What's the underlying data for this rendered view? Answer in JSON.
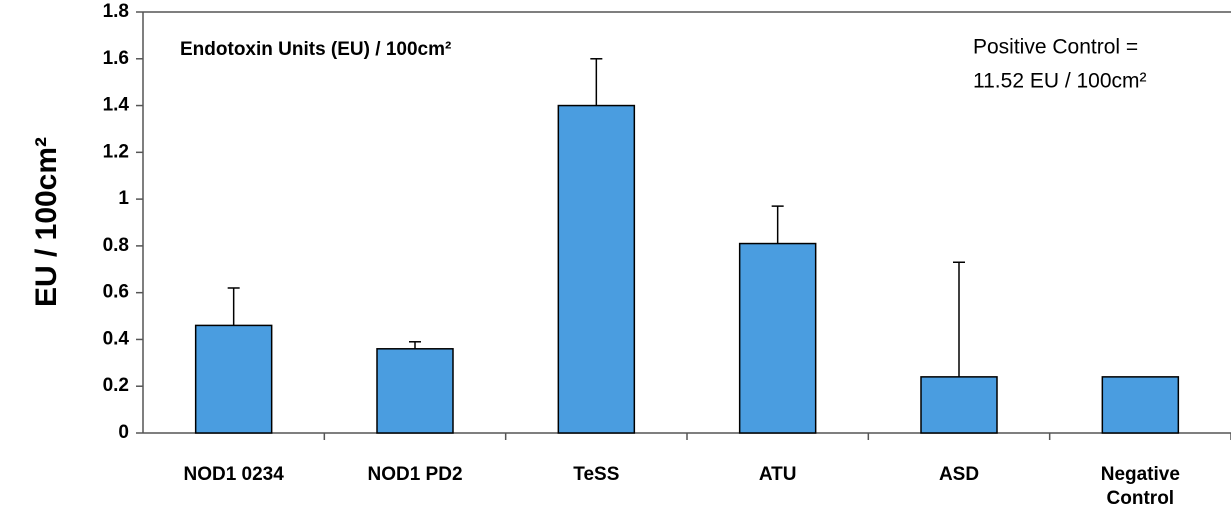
{
  "chart_data": {
    "type": "bar",
    "title": "Endotoxin Units (EU) / 100cm²",
    "annotation": [
      "Positive Control =",
      "11.52 EU / 100cm²"
    ],
    "y_label": "EU / 100cm²",
    "categories": [
      "NOD1 0234",
      "NOD1 PD2",
      "TeSS",
      "ATU",
      "ASD",
      "Negative Control"
    ],
    "values": [
      0.46,
      0.36,
      1.4,
      0.81,
      0.24,
      0.24
    ],
    "errors": [
      0.16,
      0.03,
      0.2,
      0.16,
      0.49,
      null
    ],
    "color": "#4a9de0",
    "ylim": [
      0,
      1.8
    ],
    "yticks": [
      0,
      0.2,
      0.4,
      0.6,
      0.8,
      1,
      1.2,
      1.4,
      1.6,
      1.8
    ],
    "grid": false
  }
}
